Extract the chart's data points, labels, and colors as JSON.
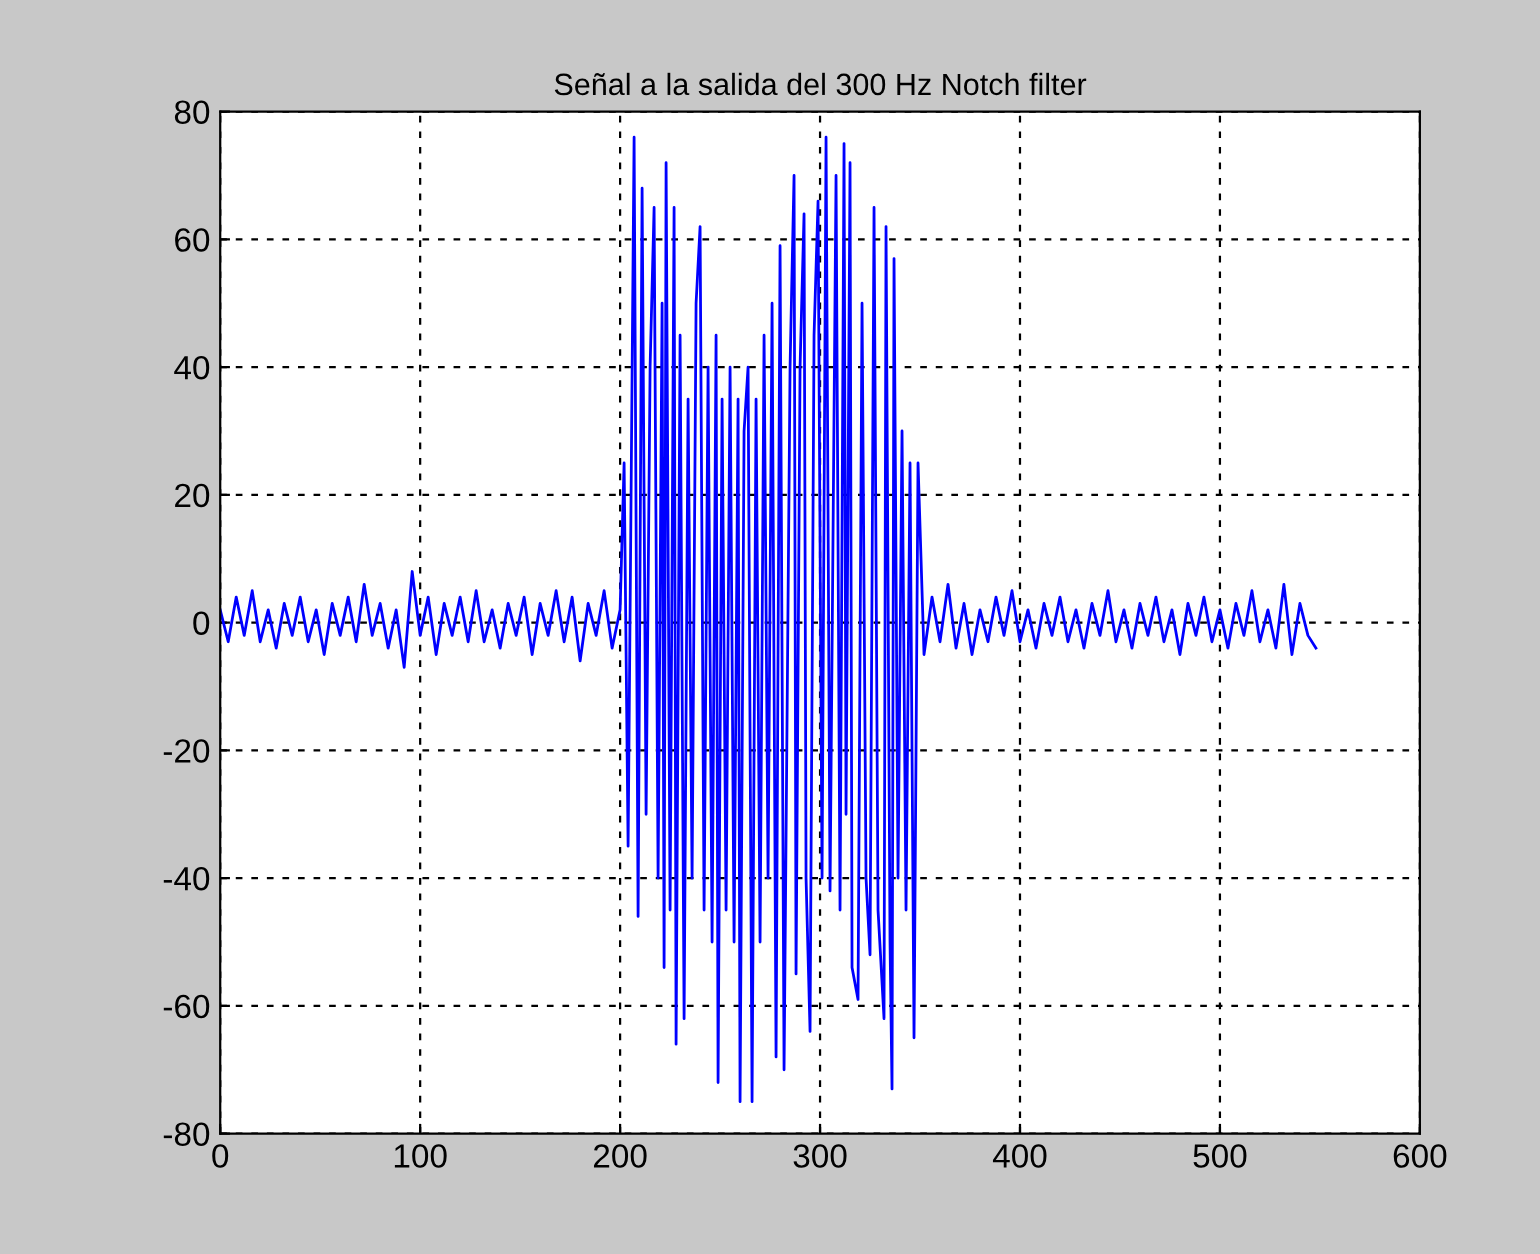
{
  "chart_data": {
    "type": "line",
    "title": "Señal a la salida del 300 Hz Notch filter",
    "xlim": [
      0,
      600
    ],
    "ylim": [
      -80,
      80
    ],
    "xticks": [
      0,
      100,
      200,
      300,
      400,
      500,
      600
    ],
    "yticks": [
      -80,
      -60,
      -40,
      -20,
      0,
      20,
      40,
      60,
      80
    ],
    "grid": true,
    "marker": "none",
    "line_style": "solid",
    "legend": false,
    "series": [
      {
        "color": "#0000ff",
        "x": [
          0,
          4,
          8,
          12,
          16,
          20,
          24,
          28,
          32,
          36,
          40,
          44,
          48,
          52,
          56,
          60,
          64,
          68,
          72,
          76,
          80,
          84,
          88,
          92,
          96,
          100,
          104,
          108,
          112,
          116,
          120,
          124,
          128,
          132,
          136,
          140,
          144,
          148,
          152,
          156,
          160,
          164,
          168,
          172,
          176,
          180,
          184,
          188,
          192,
          196,
          200,
          202,
          204,
          207,
          209,
          211,
          213,
          215,
          217,
          219,
          221,
          222,
          223,
          225,
          227,
          228,
          230,
          232,
          234,
          236,
          238,
          240,
          242,
          244,
          246,
          248,
          249,
          251,
          253,
          255,
          257,
          259,
          260,
          262,
          264,
          266,
          268,
          270,
          272,
          274,
          276,
          278,
          280,
          282,
          285,
          287,
          288,
          290,
          292,
          293,
          295,
          297,
          299,
          301,
          303,
          305,
          308,
          310,
          312,
          313,
          315,
          316,
          319,
          321,
          323,
          325,
          327,
          329,
          332,
          333,
          335,
          336,
          337,
          339,
          341,
          343,
          345,
          347,
          349,
          352,
          356,
          360,
          364,
          368,
          372,
          376,
          380,
          384,
          388,
          392,
          396,
          400,
          404,
          408,
          412,
          416,
          420,
          424,
          428,
          432,
          436,
          440,
          444,
          448,
          452,
          456,
          460,
          464,
          468,
          472,
          476,
          480,
          484,
          488,
          492,
          496,
          500,
          504,
          508,
          512,
          516,
          520,
          524,
          528,
          532,
          536,
          540,
          544,
          548
        ],
        "values": [
          2,
          -3,
          4,
          -2,
          5,
          -3,
          2,
          -4,
          3,
          -2,
          4,
          -3,
          2,
          -5,
          3,
          -2,
          4,
          -3,
          6,
          -2,
          3,
          -4,
          2,
          -7,
          8,
          -2,
          4,
          -5,
          3,
          -2,
          4,
          -3,
          5,
          -3,
          2,
          -4,
          3,
          -2,
          4,
          -5,
          3,
          -2,
          5,
          -3,
          4,
          -6,
          3,
          -2,
          5,
          -4,
          2,
          25,
          -35,
          76,
          -46,
          68,
          -30,
          40,
          65,
          -40,
          50,
          -54,
          72,
          -45,
          65,
          -66,
          45,
          -62,
          35,
          -40,
          50,
          62,
          -45,
          40,
          -50,
          45,
          -72,
          35,
          -45,
          40,
          -50,
          35,
          -75,
          30,
          40,
          -75,
          35,
          -50,
          45,
          -40,
          50,
          -68,
          59,
          -70,
          40,
          70,
          -55,
          40,
          64,
          -40,
          -64,
          45,
          66,
          -40,
          76,
          -42,
          70,
          -45,
          75,
          -30,
          72,
          -54,
          -59,
          50,
          -40,
          -52,
          65,
          -45,
          -62,
          62,
          -50,
          -73,
          57,
          -40,
          30,
          -45,
          25,
          -65,
          25,
          -5,
          4,
          -3,
          6,
          -4,
          3,
          -5,
          2,
          -3,
          4,
          -2,
          5,
          -3,
          2,
          -4,
          3,
          -2,
          4,
          -3,
          2,
          -4,
          3,
          -2,
          5,
          -3,
          2,
          -4,
          3,
          -2,
          4,
          -3,
          2,
          -5,
          3,
          -2,
          4,
          -3,
          2,
          -4,
          3,
          -2,
          5,
          -3,
          2,
          -4,
          6,
          -5,
          3,
          -2,
          -4
        ]
      }
    ]
  }
}
